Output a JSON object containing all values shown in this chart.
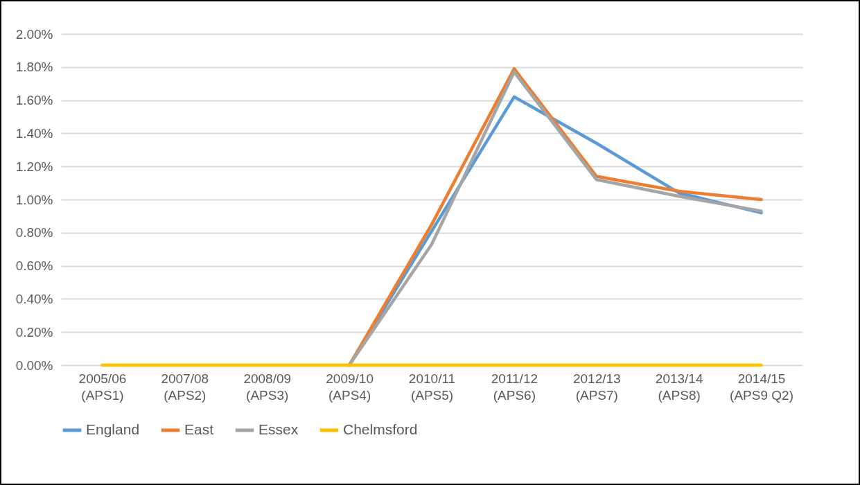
{
  "chart_data": {
    "type": "line",
    "categories": [
      "2005/06\n(APS1)",
      "2007/08\n(APS2)",
      "2008/09\n(APS3)",
      "2009/10\n(APS4)",
      "2010/11\n(APS5)",
      "2011/12\n(APS6)",
      "2012/13\n(APS7)",
      "2013/14\n(APS8)",
      "2014/15\n(APS9 Q2)"
    ],
    "series": [
      {
        "name": "England",
        "color": "#5b9bd5",
        "values": [
          null,
          null,
          null,
          0,
          0.81,
          1.62,
          1.34,
          1.04,
          0.92
        ]
      },
      {
        "name": "East",
        "color": "#ed7d31",
        "values": [
          null,
          null,
          null,
          0,
          0.85,
          1.79,
          1.14,
          1.05,
          1.0
        ]
      },
      {
        "name": "Essex",
        "color": "#a5a5a5",
        "values": [
          null,
          null,
          null,
          0,
          0.73,
          1.77,
          1.12,
          1.02,
          0.93
        ]
      },
      {
        "name": "Chelmsford",
        "color": "#ffc000",
        "values": [
          0,
          0,
          0,
          0,
          0,
          0,
          0,
          0,
          0
        ]
      }
    ],
    "ylim": [
      0,
      2
    ],
    "yticks": [
      {
        "value": 0,
        "label": "0.00%"
      },
      {
        "value": 0.2,
        "label": "0.20%"
      },
      {
        "value": 0.4,
        "label": "0.40%"
      },
      {
        "value": 0.6,
        "label": "0.60%"
      },
      {
        "value": 0.8,
        "label": "0.80%"
      },
      {
        "value": 1,
        "label": "1.00%"
      },
      {
        "value": 1.2,
        "label": "1.20%"
      },
      {
        "value": 1.4,
        "label": "1.40%"
      },
      {
        "value": 1.6,
        "label": "1.60%"
      },
      {
        "value": 1.8,
        "label": "1.80%"
      },
      {
        "value": 2,
        "label": "2.00%"
      }
    ],
    "grid": "y",
    "legend": "bottom",
    "marker": "none",
    "line_style": "solid"
  }
}
